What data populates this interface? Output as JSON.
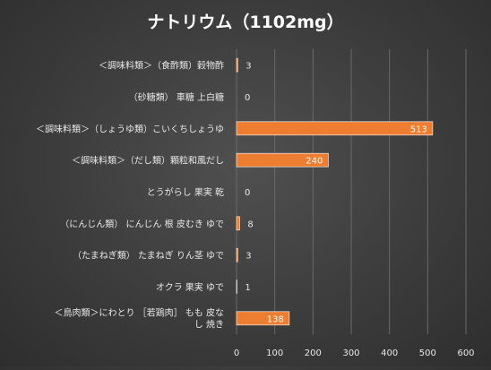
{
  "chart_data": {
    "type": "bar",
    "orientation": "horizontal",
    "title": "ナトリウム（1102mg）",
    "categories": [
      "＜調味料類＞（食酢類）穀物酢",
      "（砂糖類） 車糖 上白糖",
      "＜調味料類＞（しょうゆ類）こいくちしょうゆ",
      "＜調味料類＞（だし類）顆粒和風だし",
      "とうがらし 果実 乾",
      "（にんじん類） にんじん 根 皮むき ゆで",
      "（たまねぎ類） たまねぎ りん茎 ゆで",
      "オクラ 果実 ゆで",
      "＜鳥肉類＞にわとり ［若鶏肉］ もも 皮なし 焼き"
    ],
    "values": [
      3,
      0,
      513,
      240,
      0,
      8,
      3,
      1,
      138
    ],
    "data_labels": [
      "3",
      "0",
      "513",
      "240",
      "0",
      "8",
      "3",
      "1",
      "138"
    ],
    "xlim": [
      0,
      600
    ],
    "x_ticks": [
      "0",
      "100",
      "200",
      "300",
      "400",
      "500",
      "600"
    ],
    "grid": true,
    "legend": "none",
    "colors": {
      "bar": "#ed7d31",
      "bar_edge": "#ffffff",
      "text": "#e8e8e8",
      "grid": "#6a6a6a",
      "inside_label": "#ffffff"
    }
  }
}
